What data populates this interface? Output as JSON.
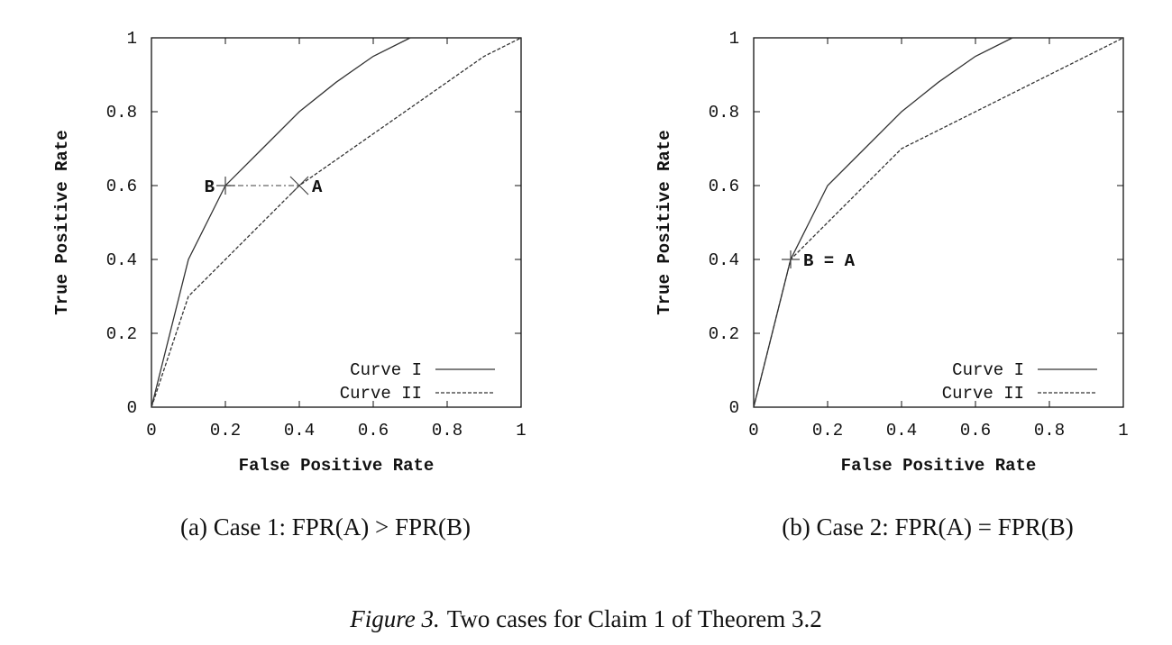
{
  "chart_data": [
    {
      "type": "line",
      "caption": "(a) Case 1: FPR(A) > FPR(B)",
      "xlabel": "False Positive Rate",
      "ylabel": "True Positive Rate",
      "xlim": [
        0,
        1
      ],
      "ylim": [
        0,
        1
      ],
      "xticks": [
        "0",
        "0.2",
        "0.4",
        "0.6",
        "0.8",
        "1"
      ],
      "yticks": [
        "0",
        "0.2",
        "0.4",
        "0.6",
        "0.8",
        "1"
      ],
      "grid": false,
      "legend_position": "bottom-right",
      "series": [
        {
          "name": "Curve I",
          "style": "solid",
          "x": [
            0,
            0.1,
            0.15,
            0.2,
            0.3,
            0.4,
            0.5,
            0.6,
            0.7
          ],
          "y": [
            0,
            0.4,
            0.5,
            0.6,
            0.7,
            0.8,
            0.88,
            0.95,
            1
          ]
        },
        {
          "name": "Curve II",
          "style": "dashed",
          "x": [
            0,
            0.1,
            0.2,
            0.4,
            0.9,
            1
          ],
          "y": [
            0,
            0.3,
            0.4,
            0.6,
            0.95,
            1
          ]
        }
      ],
      "markers": [
        {
          "label": "B",
          "x": 0.2,
          "y": 0.6,
          "symbol": "plus",
          "label_side": "left"
        },
        {
          "label": "A",
          "x": 0.4,
          "y": 0.6,
          "symbol": "cross",
          "label_side": "right"
        }
      ],
      "connector": {
        "from": [
          0.2,
          0.6
        ],
        "to": [
          0.4,
          0.6
        ],
        "style": "dash-dot"
      }
    },
    {
      "type": "line",
      "caption": "(b) Case 2: FPR(A) = FPR(B)",
      "xlabel": "False Positive Rate",
      "ylabel": "True Positive Rate",
      "xlim": [
        0,
        1
      ],
      "ylim": [
        0,
        1
      ],
      "xticks": [
        "0",
        "0.2",
        "0.4",
        "0.6",
        "0.8",
        "1"
      ],
      "yticks": [
        "0",
        "0.2",
        "0.4",
        "0.6",
        "0.8",
        "1"
      ],
      "grid": false,
      "legend_position": "bottom-right",
      "series": [
        {
          "name": "Curve I",
          "style": "solid",
          "x": [
            0,
            0.1,
            0.15,
            0.2,
            0.3,
            0.4,
            0.5,
            0.6,
            0.7
          ],
          "y": [
            0,
            0.4,
            0.5,
            0.6,
            0.7,
            0.8,
            0.88,
            0.95,
            1
          ]
        },
        {
          "name": "Curve II",
          "style": "dashed",
          "x": [
            0,
            0.1,
            0.4,
            1
          ],
          "y": [
            0,
            0.4,
            0.7,
            1
          ]
        }
      ],
      "markers": [
        {
          "label": "B = A",
          "x": 0.1,
          "y": 0.4,
          "symbol": "plus",
          "label_side": "right"
        }
      ]
    }
  ],
  "figure_caption": {
    "label": "Figure 3.",
    "text": "Two cases for Claim 1 of Theorem 3.2"
  }
}
